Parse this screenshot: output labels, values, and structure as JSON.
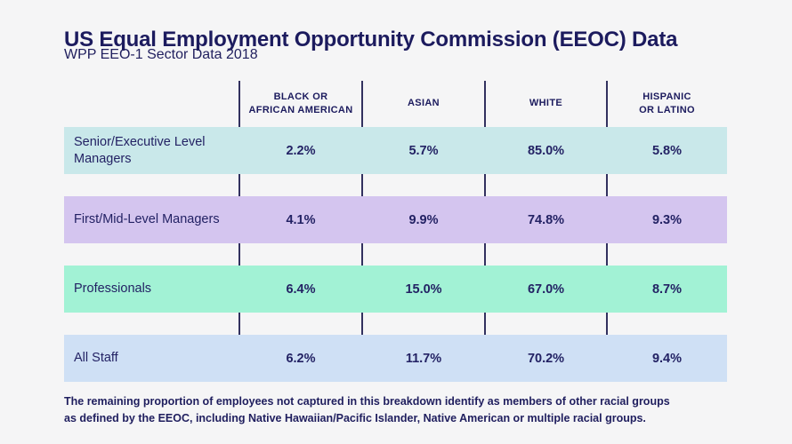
{
  "header": {
    "title": "US Equal Employment Opportunity Commission (EEOC) Data",
    "subtitle": "WPP EEO-1 Sector Data 2018"
  },
  "table": {
    "columns": [
      {
        "line1": "BLACK OR",
        "line2": "AFRICAN AMERICAN"
      },
      {
        "line1": "ASIAN",
        "line2": ""
      },
      {
        "line1": "WHITE",
        "line2": ""
      },
      {
        "line1": "HISPANIC",
        "line2": "OR LATINO"
      }
    ],
    "rows": [
      {
        "label": "Senior/Executive Level Managers",
        "values": [
          "2.2%",
          "5.7%",
          "85.0%",
          "5.8%"
        ],
        "color": "#c9e8ea"
      },
      {
        "label": "First/Mid-Level Managers",
        "values": [
          "4.1%",
          "9.9%",
          "74.8%",
          "9.3%"
        ],
        "color": "#d4c5ef"
      },
      {
        "label": "Professionals",
        "values": [
          "6.4%",
          "15.0%",
          "67.0%",
          "8.7%"
        ],
        "color": "#a2f2d5"
      },
      {
        "label": "All Staff",
        "values": [
          "6.2%",
          "11.7%",
          "70.2%",
          "9.4%"
        ],
        "color": "#cfe0f5"
      }
    ]
  },
  "footnote": {
    "line1": "The remaining proportion of employees not captured in this breakdown identify as members of other racial groups",
    "line2": "as defined by the EEOC, including Native Hawaiian/Pacific Islander, Native American or multiple racial groups."
  },
  "colors": {
    "background": "#f5f5f6",
    "text_navy": "#201f5e",
    "column_divider": "#32315f"
  },
  "chart_data": {
    "type": "table",
    "title": "US Equal Employment Opportunity Commission (EEOC) Data",
    "subtitle": "WPP EEO-1 Sector Data 2018",
    "categories": [
      "Senior/Executive Level Managers",
      "First/Mid-Level Managers",
      "Professionals",
      "All Staff"
    ],
    "series": [
      {
        "name": "Black or African American",
        "values": [
          2.2,
          4.1,
          6.4,
          6.2
        ]
      },
      {
        "name": "Asian",
        "values": [
          5.7,
          9.9,
          15.0,
          11.7
        ]
      },
      {
        "name": "White",
        "values": [
          85.0,
          74.8,
          67.0,
          70.2
        ]
      },
      {
        "name": "Hispanic or Latino",
        "values": [
          5.8,
          9.3,
          8.7,
          9.4
        ]
      }
    ],
    "unit": "%",
    "note": "The remaining proportion of employees not captured in this breakdown identify as members of other racial groups as defined by the EEOC, including Native Hawaiian/Pacific Islander, Native American or multiple racial groups."
  }
}
